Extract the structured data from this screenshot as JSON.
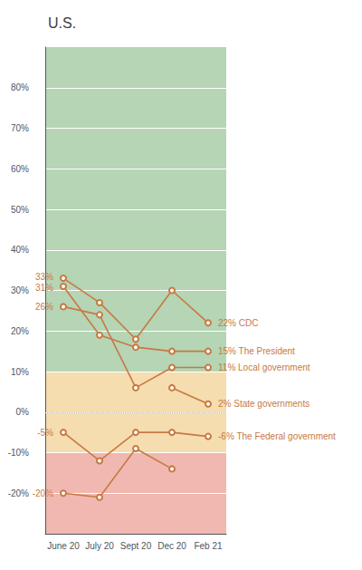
{
  "chart_data": {
    "type": "line",
    "title": "U.S.",
    "categories": [
      "June 20",
      "July 20",
      "Sept 20",
      "Dec 20",
      "Feb 21"
    ],
    "color": "#C87941",
    "marker": "circle",
    "series": [
      {
        "values": [
          33,
          27,
          18,
          30,
          22
        ],
        "label_start": "33%",
        "label_end": "22% CDC"
      },
      {
        "values": [
          31,
          19,
          16,
          15,
          15
        ],
        "label_start": "31%",
        "label_end": "15% The President"
      },
      {
        "values": [
          26,
          24,
          6,
          11,
          11
        ],
        "label_start": "26%",
        "label_end": "11% Local government"
      },
      {
        "values": [
          null,
          null,
          null,
          6,
          2
        ],
        "label_end": "2% State governments"
      },
      {
        "values": [
          -5,
          -12,
          -5,
          -5,
          -6
        ],
        "label_start": "-5%",
        "label_end": "-6% The Federal government"
      },
      {
        "values": [
          -20,
          -21,
          -9,
          -14,
          null
        ],
        "label_start": "-20%"
      }
    ],
    "ylim": [
      -30,
      90
    ],
    "yticks": [
      {
        "value": -20,
        "label": "-20%"
      },
      {
        "value": -10,
        "label": "-10%"
      },
      {
        "value": 0,
        "label": "0%"
      },
      {
        "value": 10,
        "label": "10%"
      },
      {
        "value": 20,
        "label": "20%"
      },
      {
        "value": 30,
        "label": "30%"
      },
      {
        "value": 40,
        "label": "40%"
      },
      {
        "value": 50,
        "label": "50%"
      },
      {
        "value": 60,
        "label": "60%"
      },
      {
        "value": 70,
        "label": "70%"
      },
      {
        "value": 80,
        "label": "80%"
      }
    ],
    "grid": true,
    "bands": [
      {
        "from": 10,
        "to": 90,
        "color": "#b5d5b5"
      },
      {
        "from": -10,
        "to": 10,
        "color": "#f5ddb0"
      },
      {
        "from": -30,
        "to": -10,
        "color": "#f0b8b0"
      }
    ],
    "reference_lines": [
      {
        "value": 0,
        "color": "#bbbbbb",
        "line_style": "dotted"
      }
    ]
  }
}
